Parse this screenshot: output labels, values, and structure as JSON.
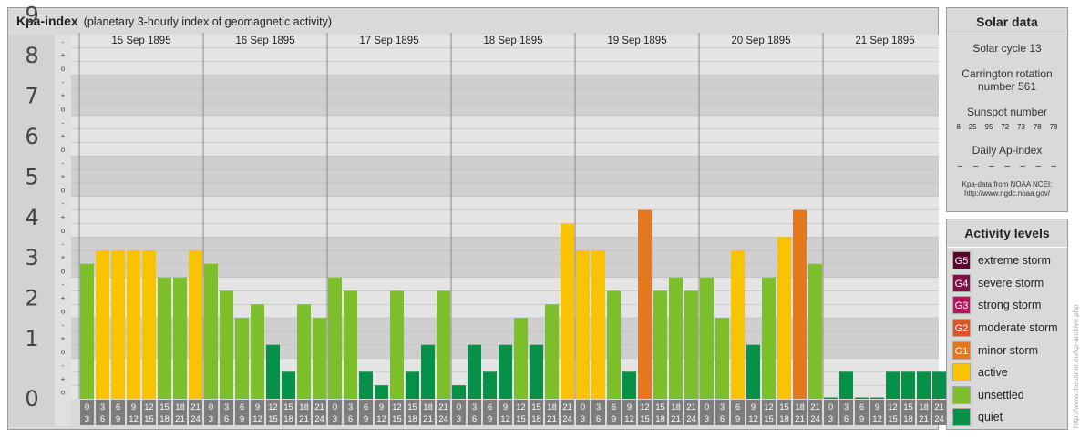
{
  "title": {
    "main": "Kpa-index",
    "subtitle": "(planetary 3-hourly index of geomagnetic activity)"
  },
  "chart_data": {
    "type": "bar",
    "title": "Kpa-index",
    "subtitle": "(planetary 3-hourly index of geomagnetic activity)",
    "ylim": [
      0,
      9
    ],
    "y_ticks": [
      "0",
      "1",
      "2",
      "3",
      "4",
      "5",
      "6",
      "7",
      "8",
      "9"
    ],
    "sub_ticks": [
      "-",
      "o",
      "+"
    ],
    "days": [
      "15 Sep 1895",
      "16 Sep 1895",
      "17 Sep 1895",
      "18 Sep 1895",
      "19 Sep 1895",
      "20 Sep 1895",
      "21 Sep 1895"
    ],
    "interval_start": [
      "0",
      "3",
      "6",
      "9",
      "12",
      "15",
      "18",
      "21"
    ],
    "interval_end": [
      "3",
      "6",
      "9",
      "12",
      "15",
      "18",
      "21",
      "24"
    ],
    "values": [
      [
        3.333,
        3.667,
        3.667,
        3.667,
        3.667,
        3.0,
        3.0,
        3.667
      ],
      [
        3.333,
        2.667,
        2.0,
        2.333,
        1.333,
        0.667,
        2.333,
        2.0
      ],
      [
        3.0,
        2.667,
        0.667,
        0.333,
        2.667,
        0.667,
        1.333,
        2.667
      ],
      [
        0.333,
        1.333,
        0.667,
        1.333,
        2.0,
        1.333,
        2.333,
        4.333
      ],
      [
        3.667,
        3.667,
        2.667,
        0.667,
        4.667,
        2.667,
        3.0,
        2.667
      ],
      [
        3.0,
        2.0,
        3.667,
        1.333,
        3.0,
        4.0,
        4.667,
        3.333
      ],
      [
        0.0,
        0.667,
        0.0,
        0.0,
        0.667,
        0.667,
        0.667,
        0.667
      ]
    ],
    "grid": true
  },
  "colors": {
    "quiet": "#079148",
    "unsettled": "#7dbf2b",
    "active": "#f8c401",
    "g1": "#e5771d",
    "g2": "#d95525",
    "g3": "#b5185c",
    "g4": "#7e0f47",
    "g5": "#58052e"
  },
  "solar": {
    "title": "Solar data",
    "cycle": "Solar cycle 13",
    "carrington_line1": "Carrington rotation",
    "carrington_line2": "number 561",
    "sunspot_label": "Sunspot number",
    "sunspots": [
      "8",
      "25",
      "95",
      "72",
      "73",
      "78",
      "78"
    ],
    "ap_label": "Daily Ap-index",
    "ap": [
      "–",
      "–",
      "–",
      "–",
      "–",
      "–",
      "–"
    ],
    "source_line1": "Kpa-data from NOAA NCEI:",
    "source_line2": "http://www.ngdc.noaa.gov/"
  },
  "levels": {
    "title": "Activity levels",
    "items": [
      {
        "badge": "G5",
        "label": "extreme storm",
        "color": "#58052e"
      },
      {
        "badge": "G4",
        "label": "severe storm",
        "color": "#7e0f47"
      },
      {
        "badge": "G3",
        "label": "strong storm",
        "color": "#b5185c"
      },
      {
        "badge": "G2",
        "label": "moderate storm",
        "color": "#d95525"
      },
      {
        "badge": "G1",
        "label": "minor storm",
        "color": "#e5771d"
      },
      {
        "badge": "",
        "label": "active",
        "color": "#f8c401"
      },
      {
        "badge": "",
        "label": "unsettled",
        "color": "#7dbf2b"
      },
      {
        "badge": "",
        "label": "quiet",
        "color": "#079148"
      }
    ]
  },
  "credit": "http://www.theusner.eu/kp-archive.php"
}
